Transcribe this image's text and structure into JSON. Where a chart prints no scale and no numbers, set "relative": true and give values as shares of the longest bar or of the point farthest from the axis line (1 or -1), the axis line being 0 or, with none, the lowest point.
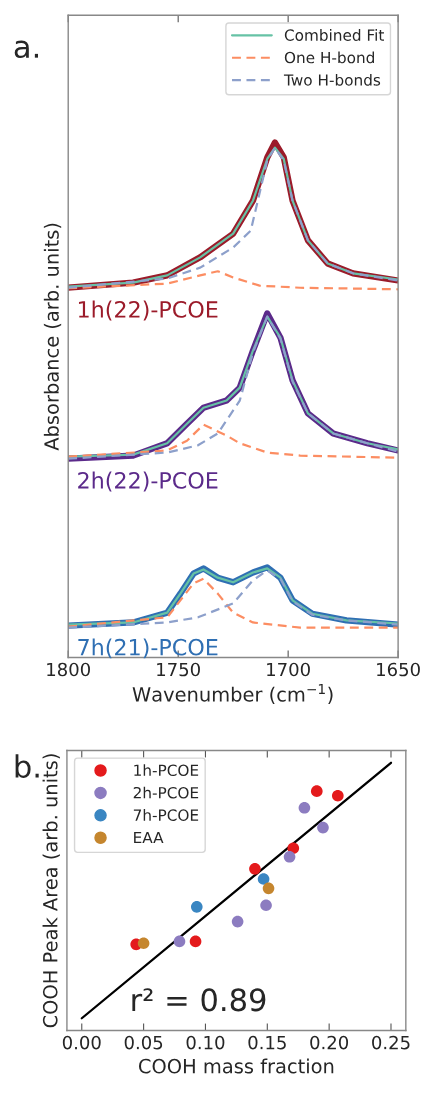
{
  "chart_data": [
    {
      "type": "line",
      "relative": true,
      "xlabel": "Wavenumber (cm$^{−1}$)",
      "ylabel": "Absorbance (arb. units)",
      "xlim": [
        1800,
        1650
      ],
      "xticks": [
        1800,
        1750,
        1700,
        1650
      ],
      "tick_labels": "x",
      "legend": "top right",
      "annotations": [
        "a."
      ],
      "series": [
        {
          "name": "1h(22)-PCOE",
          "color": "#9b1b2a",
          "x": [
            1800,
            1770.5,
            1755,
            1740,
            1725,
            1716,
            1709.5,
            1706,
            1702,
            1698,
            1691,
            1682,
            1670.5,
            1650
          ],
          "values": [
            0.718,
            0.728,
            0.742,
            0.777,
            0.823,
            0.887,
            0.971,
            1,
            0.971,
            0.887,
            0.81,
            0.765,
            0.746,
            0.732
          ]
        },
        {
          "name": "Combined Fit",
          "color": "#66c2a5",
          "line_style": "solid",
          "x": [
            1800,
            1770.5,
            1755,
            1740,
            1725,
            1716,
            1709.5,
            1706,
            1702,
            1698,
            1691,
            1682,
            1670.5,
            1650
          ],
          "values": [
            0.72,
            0.728,
            0.742,
            0.777,
            0.823,
            0.887,
            0.968,
            0.99,
            0.968,
            0.887,
            0.81,
            0.765,
            0.746,
            0.734
          ]
        },
        {
          "name": "One H-bond",
          "color": "#fc8d62",
          "line_style": "dashed",
          "x": [
            1800,
            1755,
            1740,
            1732,
            1725,
            1713,
            1694.5,
            1650
          ],
          "values": [
            0.717,
            0.726,
            0.742,
            0.75,
            0.738,
            0.722,
            0.718,
            0.715
          ]
        },
        {
          "name": "Two H-bonds",
          "color": "#8da0cb",
          "line_style": "dashed",
          "x": [
            1800,
            1755,
            1740,
            1725,
            1717,
            1709.5,
            1706,
            1702,
            1698,
            1691,
            1682,
            1670.5,
            1650
          ],
          "values": [
            0.718,
            0.736,
            0.757,
            0.796,
            0.829,
            0.965,
            0.99,
            0.965,
            0.887,
            0.81,
            0.765,
            0.746,
            0.732
          ]
        },
        {
          "name": "2h(22)-PCOE",
          "color": "#5b2a8a",
          "x": [
            1800,
            1770.5,
            1755,
            1746,
            1738.5,
            1728,
            1722,
            1716,
            1709.5,
            1703.5,
            1698,
            1691,
            1679.5,
            1664,
            1650
          ],
          "values": [
            0.386,
            0.392,
            0.416,
            0.454,
            0.485,
            0.499,
            0.524,
            0.596,
            0.668,
            0.621,
            0.538,
            0.474,
            0.435,
            0.416,
            0.402
          ]
        },
        {
          "color": "#66c2a5",
          "line_style": "solid",
          "x": [
            1800,
            1770.5,
            1755,
            1746,
            1738.5,
            1728,
            1722,
            1716,
            1709.5,
            1703.5,
            1698,
            1691,
            1679.5,
            1664,
            1650
          ],
          "values": [
            0.39,
            0.394,
            0.416,
            0.454,
            0.485,
            0.499,
            0.524,
            0.596,
            0.662,
            0.621,
            0.538,
            0.474,
            0.435,
            0.416,
            0.404
          ]
        },
        {
          "color": "#fc8d62",
          "line_style": "dashed",
          "x": [
            1800,
            1755,
            1746,
            1738.5,
            1728,
            1722,
            1709.5,
            1694.5,
            1650
          ],
          "values": [
            0.39,
            0.402,
            0.421,
            0.452,
            0.431,
            0.416,
            0.398,
            0.392,
            0.388
          ]
        },
        {
          "color": "#8da0cb",
          "line_style": "dashed",
          "x": [
            1800,
            1755,
            1741,
            1732,
            1722,
            1716,
            1709.5,
            1703.5,
            1698,
            1691,
            1679.5,
            1664,
            1650
          ],
          "values": [
            0.386,
            0.398,
            0.412,
            0.435,
            0.499,
            0.592,
            0.662,
            0.619,
            0.536,
            0.474,
            0.435,
            0.416,
            0.4
          ]
        },
        {
          "name": "7h(21)-PCOE",
          "color": "#2f6fb3",
          "x": [
            1800,
            1770.5,
            1755,
            1749,
            1743,
            1738.5,
            1732,
            1725,
            1716,
            1709.5,
            1703.5,
            1698,
            1689,
            1673.5,
            1650
          ],
          "values": [
            0.062,
            0.068,
            0.087,
            0.124,
            0.163,
            0.173,
            0.155,
            0.146,
            0.165,
            0.175,
            0.155,
            0.111,
            0.085,
            0.072,
            0.064
          ]
        },
        {
          "color": "#66c2a5",
          "line_style": "solid",
          "x": [
            1800,
            1770.5,
            1755,
            1749,
            1743,
            1738.5,
            1732,
            1725,
            1716,
            1709.5,
            1703.5,
            1698,
            1689,
            1673.5,
            1650
          ],
          "values": [
            0.064,
            0.068,
            0.087,
            0.124,
            0.163,
            0.171,
            0.155,
            0.146,
            0.165,
            0.173,
            0.155,
            0.111,
            0.085,
            0.072,
            0.066
          ]
        },
        {
          "color": "#fc8d62",
          "line_style": "dashed",
          "x": [
            1800,
            1755,
            1749,
            1743,
            1738.5,
            1732,
            1725,
            1716,
            1694.5,
            1650
          ],
          "values": [
            0.06,
            0.078,
            0.111,
            0.144,
            0.153,
            0.124,
            0.087,
            0.068,
            0.058,
            0.058
          ]
        },
        {
          "color": "#8da0cb",
          "line_style": "dashed",
          "x": [
            1800,
            1755,
            1741,
            1725,
            1716,
            1709.5,
            1703.5,
            1698,
            1689,
            1673.5,
            1650
          ],
          "values": [
            0.058,
            0.068,
            0.078,
            0.105,
            0.15,
            0.169,
            0.153,
            0.109,
            0.083,
            0.072,
            0.064
          ]
        }
      ]
    },
    {
      "type": "scatter",
      "relative": true,
      "xlabel": "COOH mass fraction",
      "ylabel": "COOH Peak Area (arb. units)",
      "xlim": [
        -0.012,
        0.262
      ],
      "xticks": [
        {
          "value": 0,
          "label": "0.00"
        },
        0.05,
        {
          "value": 0.1,
          "label": "0.10"
        },
        0.15,
        {
          "value": 0.2,
          "label": "0.20"
        },
        0.25
      ],
      "tick_labels": "x",
      "legend": "top left",
      "annotations": [
        "b.",
        "r² = 0.89"
      ],
      "series": [
        {
          "name": "1h-PCOE",
          "color": "#e41a1c",
          "marker": "circle",
          "x": [
            0.044,
            0.092,
            0.14,
            0.171,
            0.19,
            0.207
          ],
          "values": [
            0.322,
            0.333,
            0.604,
            0.681,
            0.894,
            0.877
          ]
        },
        {
          "name": "2h-PCOE",
          "color": "#8c7cc0",
          "marker": "circle",
          "x": [
            0.079,
            0.126,
            0.149,
            0.168,
            0.18,
            0.195
          ],
          "values": [
            0.333,
            0.407,
            0.468,
            0.649,
            0.832,
            0.758
          ]
        },
        {
          "name": "7h-PCOE",
          "color": "#3a86c2",
          "marker": "circle",
          "x": [
            0.093,
            0.147
          ],
          "values": [
            0.462,
            0.566
          ]
        },
        {
          "name": "EAA",
          "color": "#c5862e",
          "marker": "circle",
          "x": [
            0.05,
            0.151
          ],
          "values": [
            0.326,
            0.531
          ]
        },
        {
          "type": "line",
          "color": "#000000",
          "line_style": "solid",
          "x": [
            0,
            0.25
          ],
          "values": [
            0.046,
            1
          ]
        }
      ]
    }
  ]
}
